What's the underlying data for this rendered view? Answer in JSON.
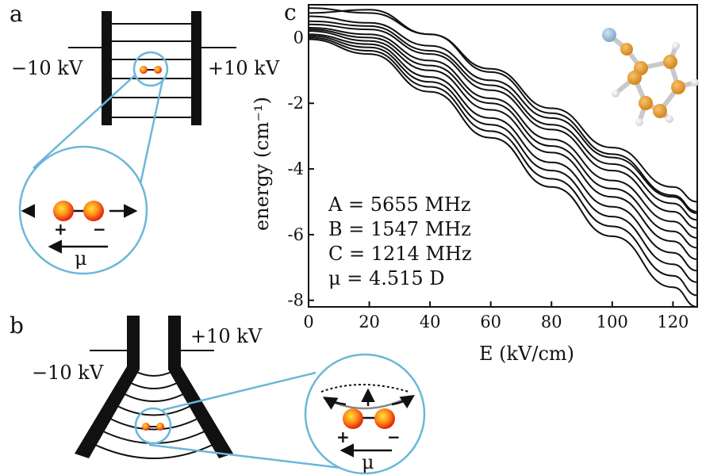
{
  "panels": {
    "a": {
      "letter": "a",
      "left_voltage": "−10 kV",
      "right_voltage": "+10 kV",
      "plus": "+",
      "minus": "−",
      "mu": "μ"
    },
    "b": {
      "letter": "b",
      "left_voltage": "−10 kV",
      "right_voltage": "+10 kV",
      "plus": "+",
      "minus": "−",
      "mu": "μ"
    },
    "c": {
      "letter": "c"
    }
  },
  "colors": {
    "zoom": "#6ab7d8",
    "molecule_outer": "#e83e17",
    "molecule_inner": "#ffcf1a",
    "ring_carbon": "#e79a2a",
    "nitrogen": "#8db4d2",
    "hydrogen": "#e6e6e6",
    "bond": "#c9c9c9",
    "curve": "#111111"
  },
  "chart_data": {
    "type": "line",
    "xlabel": "E (kV/cm)",
    "ylabel": "energy (cm⁻¹)",
    "xlim": [
      0,
      128
    ],
    "ylim": [
      -8.2,
      1.0
    ],
    "xticks": [
      "0",
      "20",
      "40",
      "60",
      "80",
      "100",
      "120"
    ],
    "yticks": [
      "0",
      "-2",
      "-4",
      "-6",
      "-8"
    ],
    "xtick_values": [
      0,
      20,
      40,
      60,
      80,
      100,
      120
    ],
    "ytick_values": [
      0,
      -2,
      -4,
      -6,
      -8
    ],
    "grid": false,
    "annotations": [
      "A = 5655 MHz",
      "B = 1547 MHz",
      "C = 1214 MHz",
      "μ = 4.515 D"
    ],
    "series": [
      {
        "x": [
          0,
          20,
          40,
          60,
          80,
          100,
          120,
          128
        ],
        "y": [
          0.9,
          0.75,
          0.1,
          -0.95,
          -2.15,
          -3.35,
          -4.55,
          -5.0
        ]
      },
      {
        "x": [
          0,
          20,
          40,
          60,
          80,
          100,
          120,
          128
        ],
        "y": [
          0.75,
          0.85,
          0.1,
          -1.05,
          -2.3,
          -3.55,
          -4.8,
          -5.3
        ]
      },
      {
        "x": [
          0,
          20,
          40,
          60,
          80,
          100,
          120,
          128
        ],
        "y": [
          0.65,
          0.45,
          -0.25,
          -1.3,
          -2.45,
          -3.65,
          -4.85,
          -5.35
        ]
      },
      {
        "x": [
          0,
          20,
          40,
          60,
          80,
          100,
          120,
          128
        ],
        "y": [
          0.5,
          0.35,
          -0.4,
          -1.45,
          -2.65,
          -3.85,
          -5.05,
          -5.55
        ]
      },
      {
        "x": [
          0,
          20,
          40,
          60,
          80,
          100,
          120,
          128
        ],
        "y": [
          0.4,
          0.25,
          -0.5,
          -1.6,
          -2.8,
          -4.05,
          -5.3,
          -5.8
        ]
      },
      {
        "x": [
          0,
          20,
          40,
          60,
          80,
          100,
          120,
          128
        ],
        "y": [
          0.3,
          0.1,
          -0.7,
          -1.85,
          -3.1,
          -4.35,
          -5.6,
          -6.1
        ]
      },
      {
        "x": [
          0,
          20,
          40,
          60,
          80,
          100,
          120,
          128
        ],
        "y": [
          0.25,
          0.0,
          -0.85,
          -2.0,
          -3.3,
          -4.6,
          -5.9,
          -6.4
        ]
      },
      {
        "x": [
          0,
          20,
          40,
          60,
          80,
          100,
          120,
          128
        ],
        "y": [
          0.2,
          -0.1,
          -1.0,
          -2.2,
          -3.5,
          -4.85,
          -6.2,
          -6.75
        ]
      },
      {
        "x": [
          0,
          20,
          40,
          60,
          80,
          100,
          120,
          128
        ],
        "y": [
          0.1,
          -0.2,
          -1.2,
          -2.45,
          -3.8,
          -5.15,
          -6.55,
          -7.1
        ]
      },
      {
        "x": [
          0,
          20,
          40,
          60,
          80,
          100,
          120,
          128
        ],
        "y": [
          0.05,
          -0.3,
          -1.35,
          -2.65,
          -4.05,
          -5.45,
          -6.9,
          -7.45
        ]
      },
      {
        "x": [
          0,
          20,
          40,
          60,
          80,
          100,
          120,
          128
        ],
        "y": [
          0.0,
          -0.4,
          -1.5,
          -2.85,
          -4.3,
          -5.75,
          -7.25,
          -7.85
        ]
      },
      {
        "x": [
          0,
          20,
          40,
          60,
          80,
          100,
          120,
          128
        ],
        "y": [
          -0.05,
          -0.5,
          -1.65,
          -3.05,
          -4.55,
          -6.05,
          -7.6,
          -8.2
        ]
      }
    ]
  }
}
